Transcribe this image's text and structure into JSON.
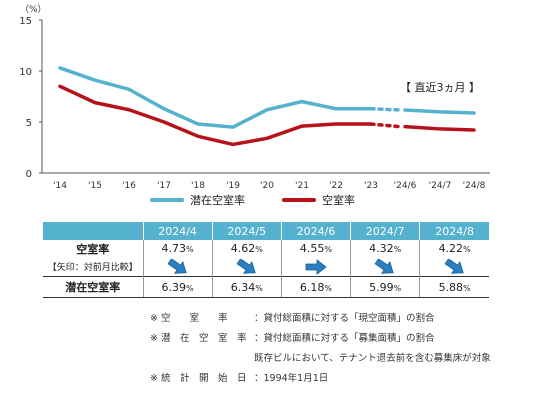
{
  "chart_data": {
    "type": "line",
    "unit_label": "（%）",
    "categories": [
      "'14",
      "'15",
      "'16",
      "'17",
      "'18",
      "'19",
      "'20",
      "'21",
      "'22",
      "'23",
      "'24/6",
      "'24/7",
      "'24/8"
    ],
    "ylim": [
      0,
      15
    ],
    "yticks": [
      0,
      5,
      10,
      15
    ],
    "series": [
      {
        "name": "潜在空室率",
        "color": "#55b2cf",
        "values": [
          10.3,
          9.1,
          8.2,
          6.3,
          4.8,
          4.5,
          6.2,
          7.0,
          6.3,
          6.3,
          6.18,
          5.99,
          5.88
        ]
      },
      {
        "name": "空室率",
        "color": "#b5121b",
        "values": [
          8.5,
          6.9,
          6.2,
          5.0,
          3.6,
          2.8,
          3.4,
          4.6,
          4.8,
          4.8,
          4.55,
          4.32,
          4.22
        ]
      }
    ],
    "annotation": "【 直近3ヵ月 】",
    "grid": false,
    "legend_position": "bottom"
  },
  "table": {
    "months": [
      "2024/4",
      "2024/5",
      "2024/6",
      "2024/7",
      "2024/8"
    ],
    "row1_label": "空室率",
    "row1_values": [
      "4.73",
      "4.62",
      "4.55",
      "4.32",
      "4.22"
    ],
    "row2_label": "【矢印：対前月比較】",
    "row2_arrows": [
      "down",
      "down",
      "right",
      "down",
      "down"
    ],
    "row3_label": "潜在空室率",
    "row3_values": [
      "6.39",
      "6.34",
      "6.18",
      "5.99",
      "5.88"
    ],
    "percent": "%",
    "arrow_color": "#2a7fc2"
  },
  "notes": [
    {
      "key": "※ 空　　室　　率",
      "value": "：貸付総面積に対する「現空面積」の割合"
    },
    {
      "key": "※ 潜　在　空　室　率",
      "value": "：貸付総面積に対する「募集面積」の割合"
    },
    {
      "key": "",
      "value": "既存ビルにおいて、テナント退去前を含む募集床が対象"
    },
    {
      "key": "※ 統　計　開　始　日",
      "value": "：1994年1月1日"
    }
  ]
}
